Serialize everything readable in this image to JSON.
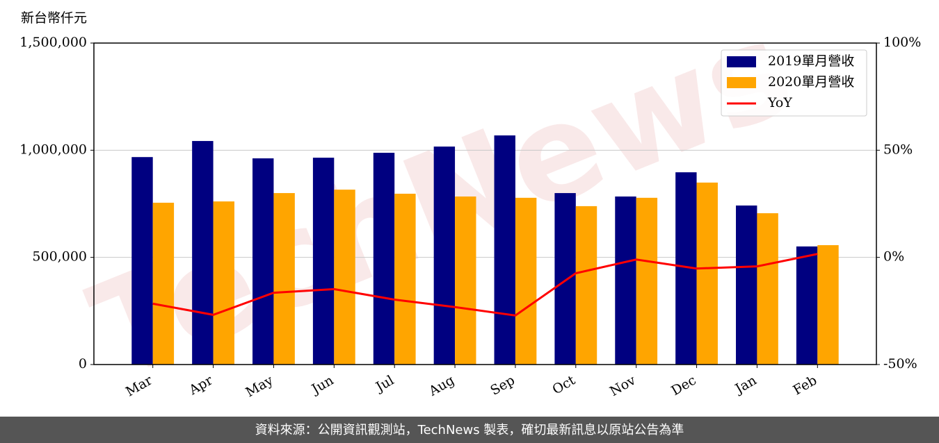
{
  "chart_data": {
    "type": "bar",
    "ylabel": "新台幣仟元",
    "watermark": "TechNews",
    "footer": "資料來源：公開資訊觀測站，TechNews 製表，確切最新訊息以原站公告為準",
    "categories": [
      "Mar",
      "Apr",
      "May",
      "Jun",
      "Jul",
      "Aug",
      "Sep",
      "Oct",
      "Nov",
      "Dec",
      "Jan",
      "Feb"
    ],
    "series": [
      {
        "name": "2019單月營收",
        "color": "#000080",
        "values": [
          968000,
          1043000,
          962000,
          965000,
          988000,
          1017000,
          1069000,
          800000,
          784000,
          897000,
          742000,
          551000
        ]
      },
      {
        "name": "2020單月營收",
        "color": "#ffa500",
        "values": [
          755000,
          761000,
          800000,
          816000,
          797000,
          784000,
          778000,
          739000,
          778000,
          849000,
          706000,
          557000
        ]
      },
      {
        "name": "YoY",
        "color": "#ff0000",
        "type": "line",
        "axis": "y2",
        "values": [
          -21.6,
          -26.8,
          -16.5,
          -14.8,
          -19.7,
          -23.2,
          -27.1,
          -7.4,
          -1.0,
          -5.2,
          -4.2,
          1.6
        ]
      }
    ],
    "ylim": [
      0,
      1500000
    ],
    "yticks": [
      0,
      {
        "value": 500000,
        "label": "500,000"
      },
      {
        "value": 1000000,
        "label": "1,000,000"
      },
      {
        "value": 1500000,
        "label": "1,500,000"
      }
    ],
    "y2lim": [
      -50,
      100
    ],
    "y2ticks": [
      {
        "value": -50,
        "label": "-50%"
      },
      {
        "value": 0,
        "label": "0%"
      },
      {
        "value": 50,
        "label": "50%"
      },
      {
        "value": 100,
        "label": "100%"
      }
    ],
    "grid": true,
    "legend": "upper right"
  }
}
